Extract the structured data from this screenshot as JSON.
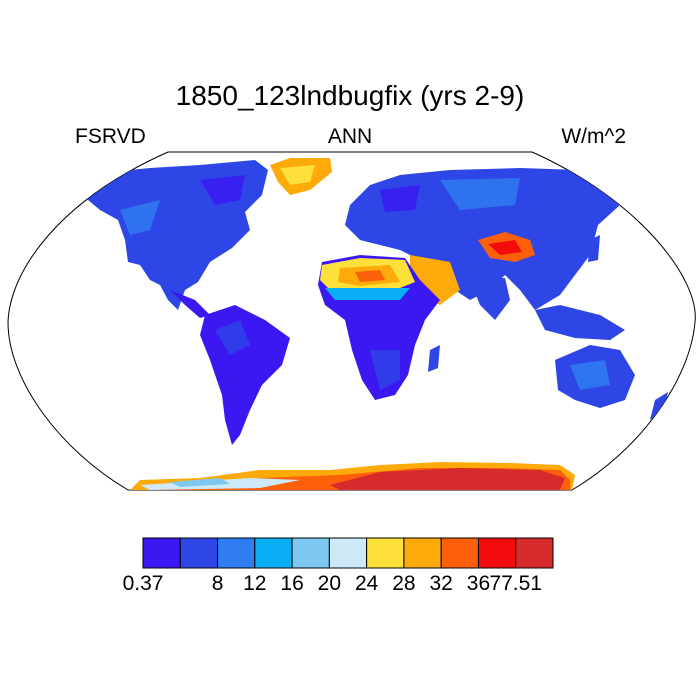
{
  "title": "1850_123lndbugfix (yrs 2-9)",
  "subtitle_left": "FSRVD",
  "subtitle_center": "ANN",
  "subtitle_right": "W/m^2",
  "colorbar": {
    "colors": [
      "#3b18f2",
      "#2e46e6",
      "#2f7df0",
      "#0aaef5",
      "#7dc8f0",
      "#cde9f7",
      "#fde039",
      "#fdaa0a",
      "#fc600a",
      "#f40c0c",
      "#d62b2b"
    ],
    "labels": [
      "0.37",
      "8",
      "12",
      "16",
      "20",
      "24",
      "28",
      "32",
      "36",
      "77.51"
    ]
  },
  "palette": {
    "land_low": "#3b18f2",
    "land_mid": "#2e46e6",
    "desert": "#fdaa0a",
    "ice_hot": "#d62b2b"
  }
}
